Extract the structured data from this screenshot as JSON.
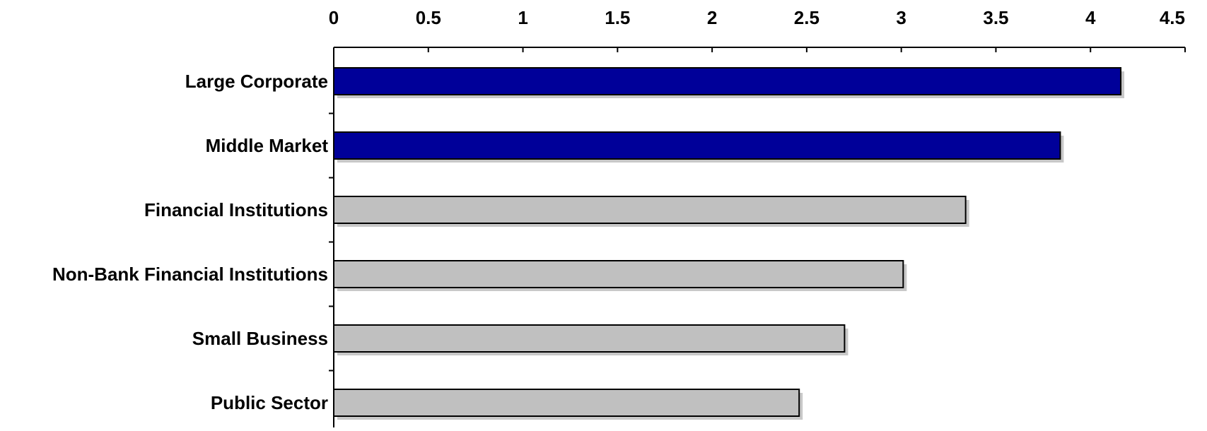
{
  "chart_data": {
    "type": "bar",
    "orientation": "horizontal",
    "title": "",
    "xlabel": "",
    "ylabel": "",
    "x_axis_position": "top",
    "xlim": [
      0,
      4.5
    ],
    "x_ticks": [
      0,
      0.5,
      1,
      1.5,
      2,
      2.5,
      3,
      3.5,
      4,
      4.5
    ],
    "x_tick_labels": [
      "0",
      "0.5",
      "1",
      "1.5",
      "2",
      "2.5",
      "3",
      "3.5",
      "4",
      "4.5"
    ],
    "grid": false,
    "legend": "none",
    "categories": [
      "Large Corporate",
      "Middle Market",
      "Financial Institutions",
      "Non-Bank Financial Institutions",
      "Small Business",
      "Public Sector"
    ],
    "values": [
      4.16,
      3.84,
      3.34,
      3.01,
      2.7,
      2.46
    ],
    "bar_colors": [
      "#000099",
      "#000099",
      "#c0c0c0",
      "#c0c0c0",
      "#c0c0c0",
      "#c0c0c0"
    ],
    "shadow_color": "#c8c8c8",
    "outline_color": "#000000"
  }
}
